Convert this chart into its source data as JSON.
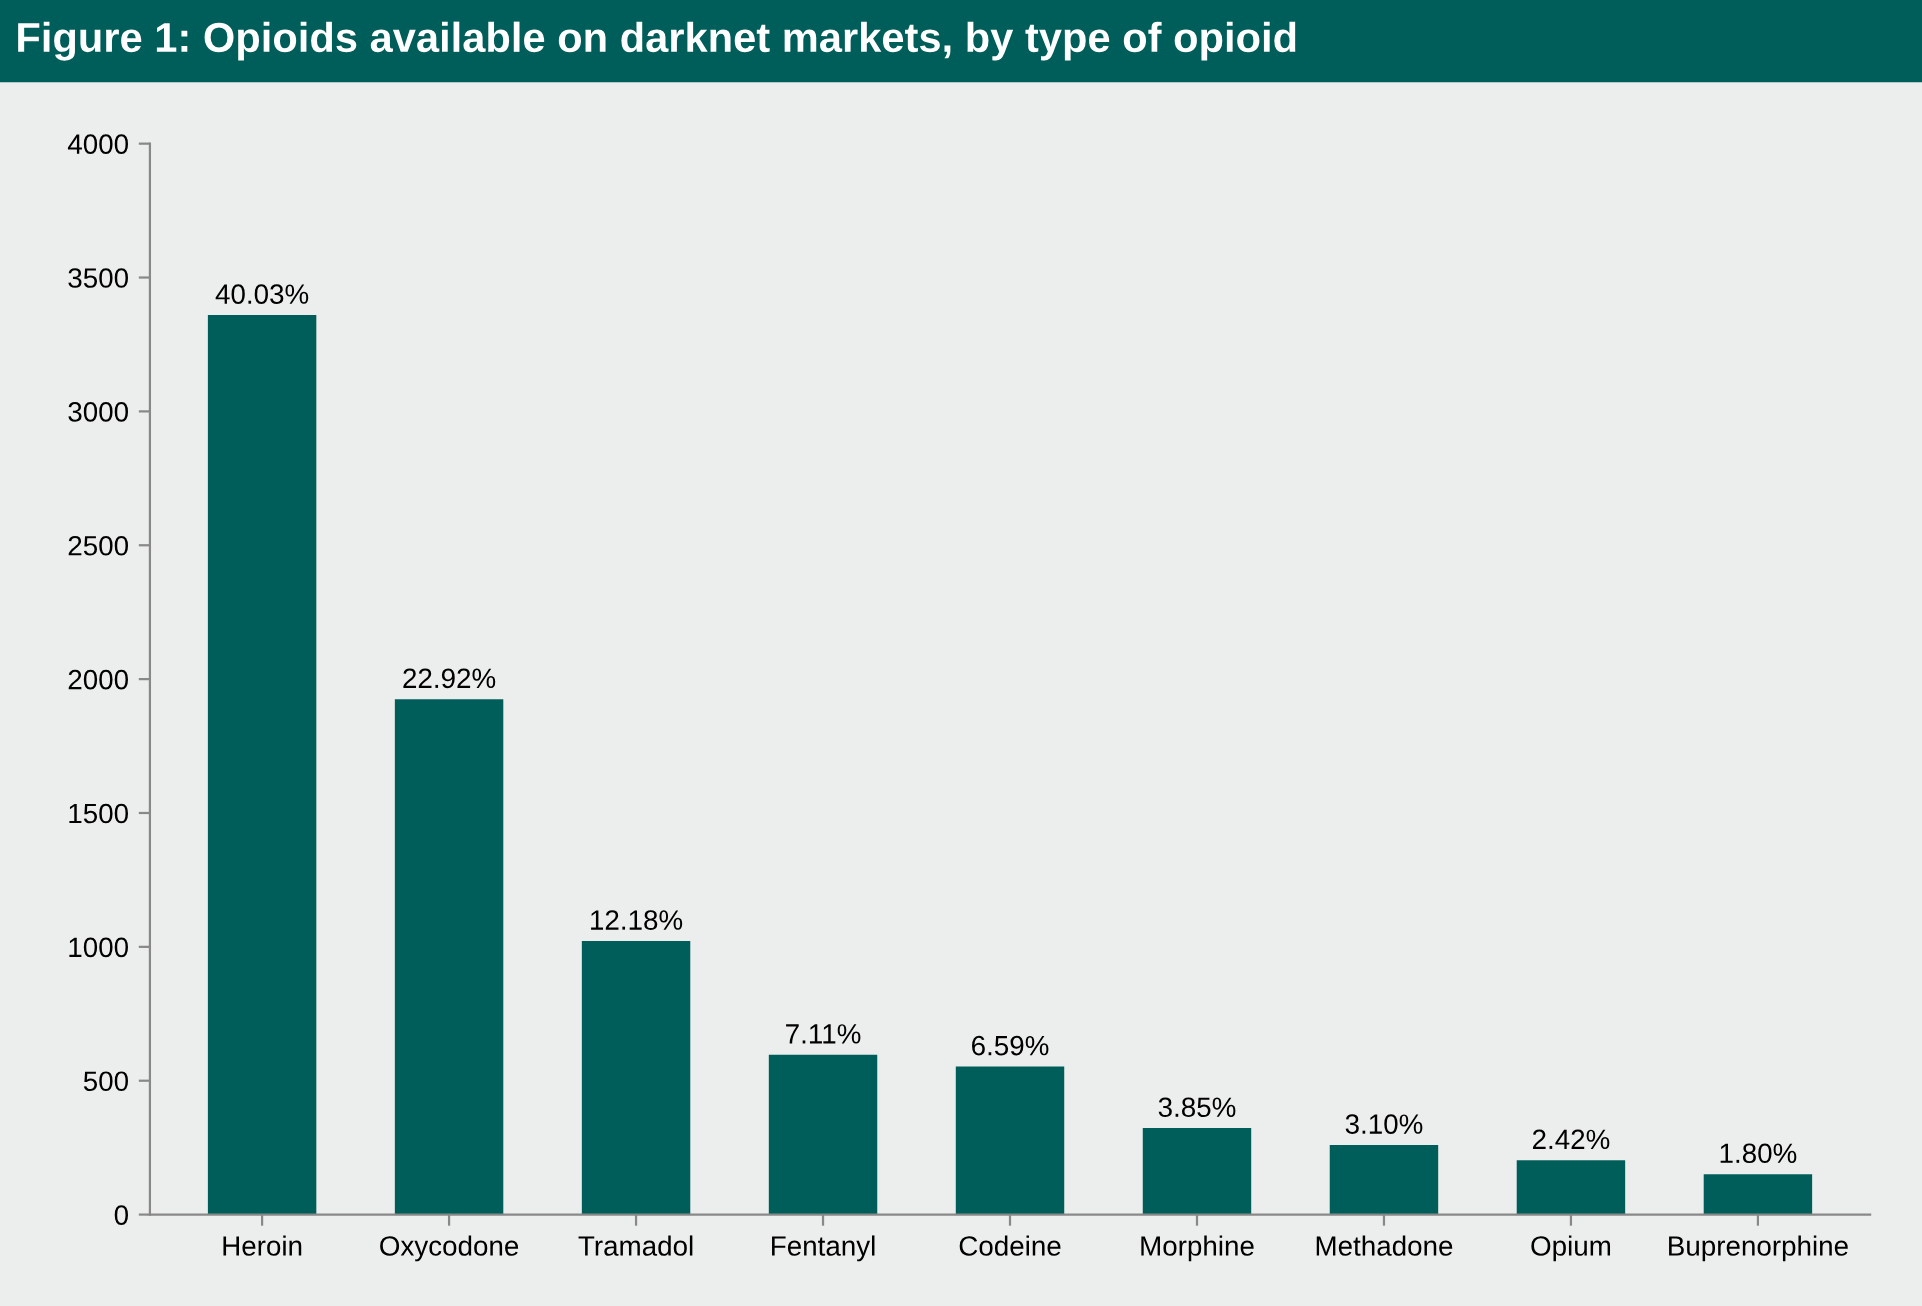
{
  "chart_data": {
    "type": "bar",
    "title": "Figure 1: Opioids available on darknet markets, by type of opioid",
    "categories": [
      "Heroin",
      "Oxycodone",
      "Tramadol",
      "Fentanyl",
      "Codeine",
      "Morphine",
      "Methadone",
      "Opium",
      "Buprenorphine"
    ],
    "values": [
      3360,
      1925,
      1022,
      597,
      553,
      323,
      260,
      203,
      151
    ],
    "annotations": [
      {
        "text": "40.03%",
        "x": "Heroin",
        "y": 3360
      },
      {
        "text": "22.92%",
        "x": "Oxycodone",
        "y": 1925
      },
      {
        "text": "12.18%",
        "x": "Tramadol",
        "y": 1022
      },
      {
        "text": "7.11%",
        "x": "Fentanyl",
        "y": 597
      },
      {
        "text": "6.59%",
        "x": "Codeine",
        "y": 553
      },
      {
        "text": "3.85%",
        "x": "Morphine",
        "y": 323
      },
      {
        "text": "3.10%",
        "x": "Methadone",
        "y": 260
      },
      {
        "text": "2.42%",
        "x": "Opium",
        "y": 203
      },
      {
        "text": "1.80%",
        "x": "Buprenorphine",
        "y": 151
      }
    ],
    "color": "#005e5a",
    "ylim": [
      0,
      4000
    ],
    "yticks": [
      0,
      500,
      1000,
      1500,
      2000,
      2500,
      3000,
      3500,
      4000
    ],
    "grid": false
  }
}
